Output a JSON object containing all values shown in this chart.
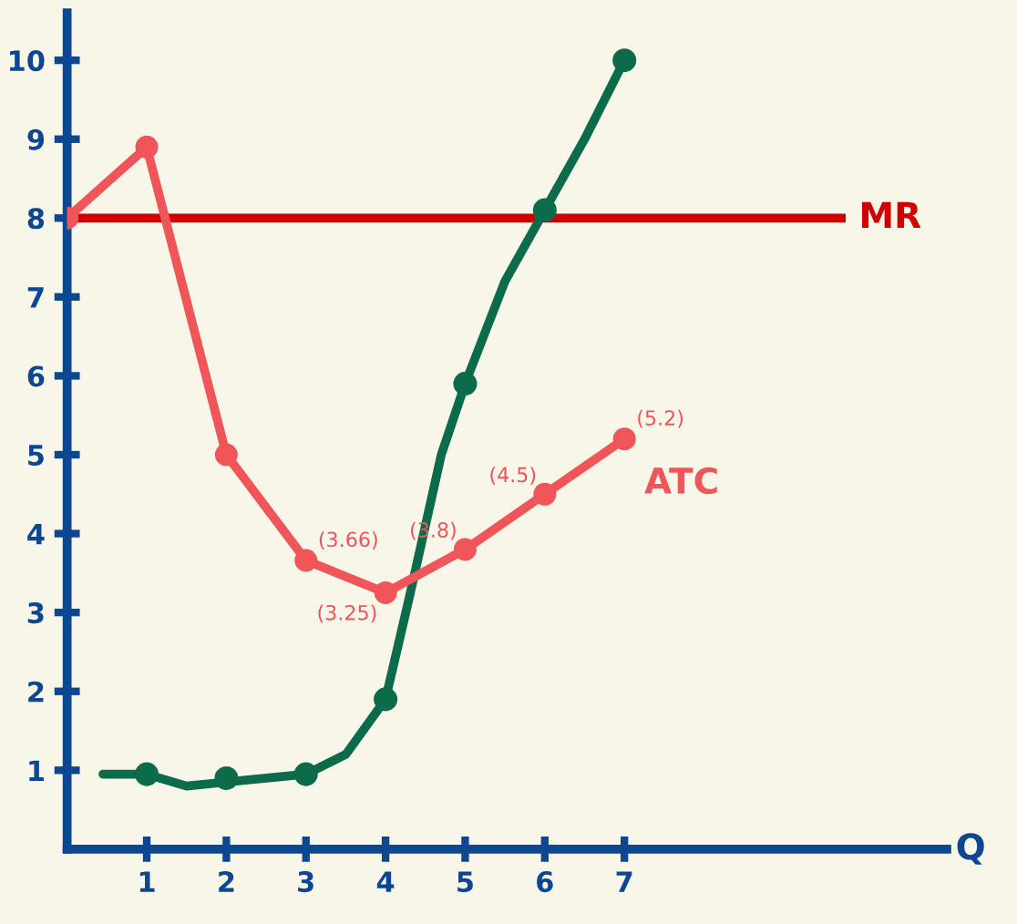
{
  "chart_data": {
    "type": "line",
    "xlabel": "Q",
    "xlim": [
      0,
      11.05
    ],
    "ylim": [
      0,
      10.6
    ],
    "xticks": [
      1,
      2,
      3,
      4,
      5,
      6,
      7
    ],
    "yticks": [
      1,
      2,
      3,
      4,
      5,
      6,
      7,
      8,
      9,
      10
    ],
    "series": [
      {
        "color": "#0b6b4a",
        "marker": "none",
        "x": [
          0.45,
          1,
          1.5,
          2,
          3,
          3.5,
          4,
          4.3,
          4.7,
          5,
          5.5,
          6,
          6.5,
          7
        ],
        "values": [
          0.95,
          0.95,
          0.8,
          0.85,
          0.95,
          1.2,
          1.9,
          3.2,
          5.0,
          5.9,
          7.2,
          8.1,
          9.0,
          10
        ]
      },
      {
        "color": "#0b6b4a",
        "type": "scatter",
        "marker": "circle",
        "x": [
          1,
          2,
          3,
          4,
          5,
          6,
          7
        ],
        "values": [
          0.95,
          0.9,
          0.95,
          1.9,
          5.9,
          8.1,
          10
        ]
      },
      {
        "name": "ATC",
        "color": "#f0555a",
        "marker": "circle",
        "x": [
          0,
          1,
          2,
          3,
          4,
          5,
          6,
          7
        ],
        "values": [
          8,
          8.9,
          5,
          3.66,
          3.25,
          3.8,
          4.5,
          5.2
        ],
        "value_labels": [
          null,
          null,
          null,
          "(3.66)",
          "(3.25)",
          "(3.8)",
          "(4.5)",
          "(5.2)"
        ]
      }
    ],
    "ref_lines": [
      {
        "axis": "y",
        "value": 8,
        "label": "MR",
        "color": "#d10000"
      }
    ]
  }
}
